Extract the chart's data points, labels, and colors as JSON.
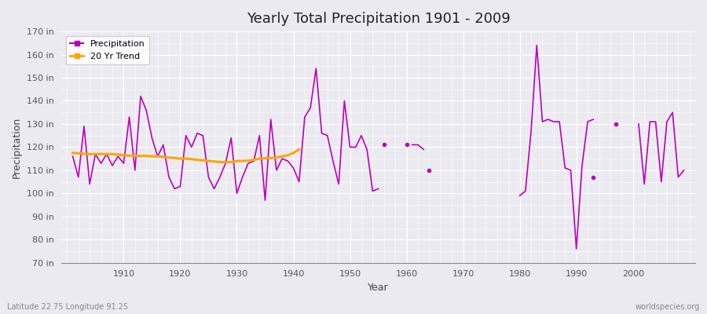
{
  "title": "Yearly Total Precipitation 1901 - 2009",
  "xlabel": "Year",
  "ylabel": "Precipitation",
  "bottom_left_label": "Latitude 22.75 Longitude 91.25",
  "bottom_right_label": "worldspecies.org",
  "ylim": [
    70,
    170
  ],
  "background_color": "#eaeaf0",
  "line_color": "#bb00bb",
  "trend_color": "#FFA500",
  "grid_color": "#ffffff",
  "years": [
    1901,
    1902,
    1903,
    1904,
    1905,
    1906,
    1907,
    1908,
    1909,
    1910,
    1911,
    1912,
    1913,
    1914,
    1915,
    1916,
    1917,
    1918,
    1919,
    1920,
    1921,
    1922,
    1923,
    1924,
    1925,
    1926,
    1927,
    1928,
    1929,
    1930,
    1931,
    1932,
    1933,
    1934,
    1935,
    1936,
    1937,
    1938,
    1939,
    1940,
    1941,
    1942,
    1943,
    1944,
    1945,
    1946,
    1947,
    1948,
    1949,
    1950,
    1951,
    1952,
    1953,
    1954,
    1955,
    1956,
    1957,
    1958,
    1959,
    1960,
    1961,
    1962,
    1963,
    1964,
    1965,
    1966,
    1967,
    1968,
    1969,
    1970,
    1971,
    1972,
    1973,
    1974,
    1975,
    1976,
    1977,
    1978,
    1979,
    1980,
    1981,
    1982,
    1983,
    1984,
    1985,
    1986,
    1987,
    1988,
    1989,
    1990,
    1991,
    1992,
    1993,
    1994,
    1995,
    1996,
    1997,
    1998,
    1999,
    2000,
    2001,
    2002,
    2003,
    2004,
    2005,
    2006,
    2007,
    2008,
    2009
  ],
  "precip": [
    116,
    107,
    129,
    104,
    117,
    113,
    117,
    112,
    116,
    113,
    133,
    110,
    142,
    136,
    124,
    116,
    121,
    107,
    102,
    103,
    125,
    120,
    126,
    125,
    107,
    102,
    107,
    113,
    124,
    100,
    107,
    113,
    114,
    125,
    97,
    132,
    110,
    115,
    114,
    111,
    105,
    133,
    137,
    154,
    126,
    125,
    114,
    104,
    140,
    120,
    120,
    125,
    119,
    101,
    102,
    null,
    null,
    null,
    null,
    null,
    121,
    121,
    119,
    null,
    null,
    null,
    null,
    null,
    null,
    null,
    null,
    null,
    null,
    null,
    null,
    null,
    null,
    null,
    null,
    99,
    101,
    127,
    164,
    131,
    132,
    131,
    131,
    111,
    110,
    76,
    112,
    131,
    132,
    null,
    null,
    null,
    null,
    null,
    null,
    null,
    130,
    104,
    131,
    131,
    105,
    131,
    135,
    107,
    110
  ],
  "isolated_points": [
    {
      "year": 1956,
      "value": 121
    },
    {
      "year": 1960,
      "value": 121
    },
    {
      "year": 1964,
      "value": 110
    },
    {
      "year": 1993,
      "value": 107
    },
    {
      "year": 1997,
      "value": 130
    }
  ],
  "trend_years": [
    1901,
    1902,
    1903,
    1904,
    1905,
    1906,
    1907,
    1908,
    1909,
    1910,
    1911,
    1912,
    1913,
    1914,
    1915,
    1916,
    1917,
    1918,
    1919,
    1920,
    1921,
    1922,
    1923,
    1924,
    1925,
    1926,
    1927,
    1928,
    1929,
    1930,
    1931,
    1932,
    1933,
    1934,
    1935,
    1936,
    1937,
    1938,
    1939,
    1940,
    1941
  ],
  "trend_values": [
    117.5,
    117.3,
    117.1,
    117.0,
    117.0,
    117.0,
    117.0,
    117.0,
    116.8,
    116.5,
    116.3,
    116.2,
    116.2,
    116.2,
    116.0,
    116.0,
    115.8,
    115.5,
    115.3,
    115.0,
    115.0,
    114.8,
    114.5,
    114.3,
    114.0,
    113.8,
    113.5,
    113.5,
    113.5,
    114.0,
    114.0,
    114.2,
    114.5,
    115.0,
    115.2,
    115.3,
    115.5,
    116.0,
    116.5,
    117.5,
    119.0
  ]
}
